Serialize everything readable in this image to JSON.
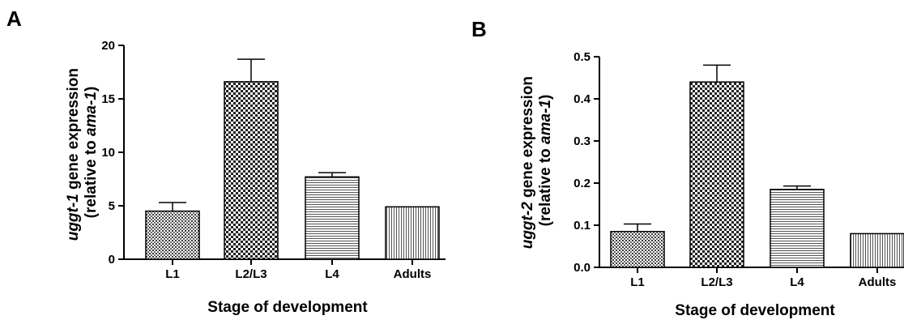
{
  "chart_data": [
    {
      "type": "bar",
      "panel_label": "A",
      "categories": [
        "L1",
        "L2/L3",
        "L4",
        "Adults"
      ],
      "values": [
        4.5,
        16.6,
        7.7,
        4.9
      ],
      "errors": [
        0.8,
        2.1,
        0.4,
        0.0
      ],
      "patterns": [
        "dots",
        "checker",
        "hlines",
        "vlines"
      ],
      "ylabel": {
        "line1_gene": "uggt-1",
        "line1_rest": " gene expression",
        "line2_pre": "(relative to ",
        "line2_ref": "ama-1",
        "line2_post": ")"
      },
      "xlabel": "Stage of development",
      "ylim": [
        0,
        20
      ],
      "yticks": [
        "0",
        "5",
        "10",
        "15",
        "20"
      ],
      "ytick_values": [
        0,
        5,
        10,
        15,
        20
      ]
    },
    {
      "type": "bar",
      "panel_label": "B",
      "categories": [
        "L1",
        "L2/L3",
        "L4",
        "Adults"
      ],
      "values": [
        0.085,
        0.44,
        0.185,
        0.08
      ],
      "errors": [
        0.018,
        0.04,
        0.008,
        0.0
      ],
      "patterns": [
        "dots",
        "checker",
        "hlines",
        "vlines"
      ],
      "ylabel": {
        "line1_gene": "uggt-2",
        "line1_rest": " gene expression",
        "line2_pre": "(relative to ",
        "line2_ref": "ama-1",
        "line2_post": ")"
      },
      "xlabel": "Stage of development",
      "ylim": [
        0,
        0.5
      ],
      "yticks": [
        "0.0",
        "0.1",
        "0.2",
        "0.3",
        "0.4",
        "0.5"
      ],
      "ytick_values": [
        0,
        0.1,
        0.2,
        0.3,
        0.4,
        0.5
      ]
    }
  ]
}
